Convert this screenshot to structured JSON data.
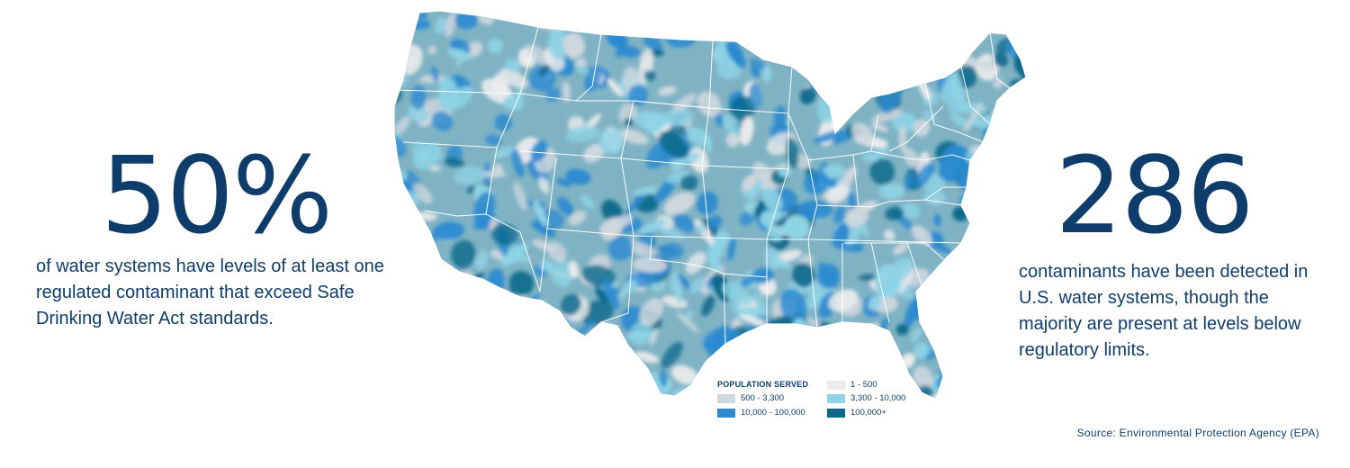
{
  "left_stat": {
    "number": "50%",
    "caption": "of water systems have levels of at least one regulated contaminant that exceed Safe Drinking Water Act standards."
  },
  "right_stat": {
    "number": "286",
    "caption": "contaminants have been detected in U.S. water systems, though the majority are present at levels below regulatory limits."
  },
  "legend": {
    "title": "POPULATION SERVED",
    "items": [
      {
        "label": "1 - 500",
        "color": "#ececec"
      },
      {
        "label": "500 - 3,300",
        "color": "#cfd7de"
      },
      {
        "label": "3,300 - 10,000",
        "color": "#8ed3e6"
      },
      {
        "label": "10,000 - 100,000",
        "color": "#2b8ad0"
      },
      {
        "label": "100,000+",
        "color": "#0b6a8c"
      }
    ]
  },
  "source": "Source: Environmental Protection Agency (EPA)",
  "map": {
    "base_color": "#7fb3c4",
    "border_color": "#ffffff"
  }
}
